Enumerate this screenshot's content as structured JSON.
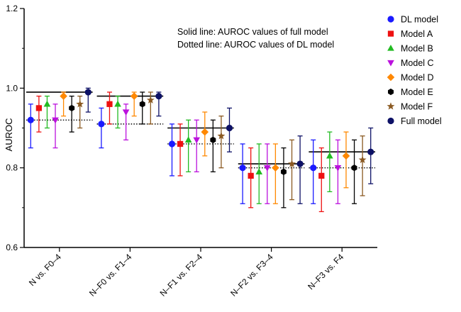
{
  "chart_data": {
    "type": "scatter",
    "ylabel": "AUROC",
    "ylim": [
      0.6,
      1.2
    ],
    "yticks": [
      "0.6",
      "0.8",
      "1.0",
      "1.2"
    ],
    "categories": [
      "N vs. F0–4",
      "N–F0 vs. F1–4",
      "N–F1 vs. F2–4",
      "N–F2 vs. F3–4",
      "N–F3 vs. F4"
    ],
    "annotations": [
      "Solid line: AUROC values of full model",
      "Dotted line: AUROC values of DL model"
    ],
    "legend_position": "right",
    "series": [
      {
        "name": "DL model",
        "color": "#1a1aff",
        "marker": "circle",
        "values": [
          0.92,
          0.91,
          0.86,
          0.8,
          0.8
        ],
        "lower": [
          0.85,
          0.85,
          0.78,
          0.71,
          0.71
        ],
        "upper": [
          0.96,
          0.95,
          0.91,
          0.86,
          0.87
        ]
      },
      {
        "name": "Model A",
        "color": "#ee1111",
        "marker": "square",
        "values": [
          0.95,
          0.96,
          0.86,
          0.78,
          0.78
        ],
        "lower": [
          0.89,
          0.91,
          0.78,
          0.7,
          0.69
        ],
        "upper": [
          0.98,
          0.99,
          0.91,
          0.85,
          0.85
        ]
      },
      {
        "name": "Model B",
        "color": "#22bb22",
        "marker": "triangle-up",
        "values": [
          0.96,
          0.96,
          0.87,
          0.79,
          0.83
        ],
        "lower": [
          0.9,
          0.9,
          0.79,
          0.71,
          0.74
        ],
        "upper": [
          0.98,
          0.98,
          0.92,
          0.86,
          0.89
        ]
      },
      {
        "name": "Model C",
        "color": "#bb11dd",
        "marker": "triangle-down",
        "values": [
          0.92,
          0.94,
          0.87,
          0.8,
          0.8
        ],
        "lower": [
          0.85,
          0.87,
          0.79,
          0.71,
          0.71
        ],
        "upper": [
          0.96,
          0.96,
          0.92,
          0.86,
          0.87
        ]
      },
      {
        "name": "Model D",
        "color": "#ff8800",
        "marker": "diamond",
        "values": [
          0.98,
          0.98,
          0.89,
          0.8,
          0.83
        ],
        "lower": [
          0.93,
          0.93,
          0.83,
          0.71,
          0.75
        ],
        "upper": [
          0.99,
          0.99,
          0.94,
          0.86,
          0.89
        ]
      },
      {
        "name": "Model E",
        "color": "#000000",
        "marker": "hexagon",
        "values": [
          0.95,
          0.96,
          0.87,
          0.79,
          0.8
        ],
        "lower": [
          0.89,
          0.91,
          0.79,
          0.7,
          0.71
        ],
        "upper": [
          0.98,
          0.99,
          0.92,
          0.85,
          0.87
        ]
      },
      {
        "name": "Model F",
        "color": "#8b5a22",
        "marker": "star",
        "values": [
          0.96,
          0.97,
          0.88,
          0.81,
          0.82
        ],
        "lower": [
          0.9,
          0.91,
          0.8,
          0.72,
          0.73
        ],
        "upper": [
          0.98,
          0.99,
          0.93,
          0.87,
          0.88
        ]
      },
      {
        "name": "Full model",
        "color": "#0d1166",
        "marker": "circle",
        "values": [
          0.99,
          0.98,
          0.9,
          0.81,
          0.84
        ],
        "lower": [
          0.94,
          0.93,
          0.84,
          0.71,
          0.76
        ],
        "upper": [
          1.0,
          0.99,
          0.95,
          0.88,
          0.9
        ]
      }
    ],
    "reference_lines": {
      "full_model_solid": [
        0.99,
        0.98,
        0.9,
        0.81,
        0.84
      ],
      "dl_model_dotted": [
        0.92,
        0.91,
        0.86,
        0.8,
        0.8
      ]
    }
  }
}
